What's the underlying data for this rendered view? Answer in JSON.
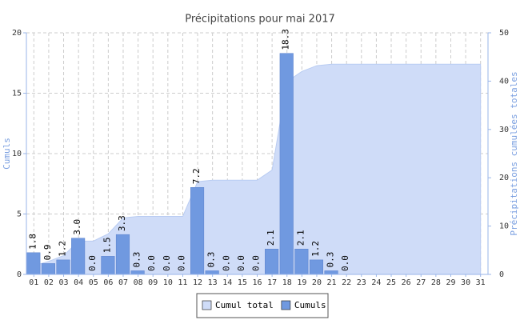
{
  "chart_data": {
    "type": "bar",
    "title": "Précipitations pour mai 2017",
    "categories": [
      "01",
      "02",
      "03",
      "04",
      "05",
      "06",
      "07",
      "08",
      "09",
      "10",
      "11",
      "12",
      "13",
      "14",
      "15",
      "16",
      "17",
      "18",
      "19",
      "20",
      "21",
      "22",
      "23",
      "24",
      "25",
      "26",
      "27",
      "28",
      "29",
      "30",
      "31"
    ],
    "ylabel": "Cumuls",
    "y2label": "Précipitations cumulées totales",
    "ylim": [
      0,
      20
    ],
    "yticks": [
      0,
      5,
      10,
      15,
      20
    ],
    "y2lim": [
      0,
      50
    ],
    "y2ticks": [
      0,
      10,
      20,
      30,
      40,
      50
    ],
    "grid": true,
    "legend": "bottom",
    "series": [
      {
        "name": "Cumul total",
        "type": "area",
        "axis": "y2",
        "color": "#cfdcf8",
        "values": [
          1.8,
          2.7,
          3.9,
          6.9,
          6.9,
          8.4,
          11.7,
          12.0,
          12.0,
          12.0,
          12.0,
          19.2,
          19.5,
          19.5,
          19.5,
          19.5,
          21.6,
          39.9,
          42.0,
          43.2,
          43.5,
          43.5,
          43.5,
          43.5,
          43.5,
          43.5,
          43.5,
          43.5,
          43.5,
          43.5,
          43.5
        ]
      },
      {
        "name": "Cumuls",
        "type": "bar",
        "color": "#7099e0",
        "values": [
          1.8,
          0.9,
          1.2,
          3.0,
          0.0,
          1.5,
          3.3,
          0.3,
          0.0,
          0.0,
          0.0,
          7.2,
          0.3,
          0.0,
          0.0,
          0.0,
          2.1,
          18.3,
          2.1,
          1.2,
          0.3,
          0.0,
          null,
          null,
          null,
          null,
          null,
          null,
          null,
          null,
          null
        ],
        "value_labels": [
          "1.8",
          "0.9",
          "1.2",
          "3.0",
          "0.0",
          "1.5",
          "3.3",
          "0.3",
          "0.0",
          "0.0",
          "0.0",
          "7.2",
          "0.3",
          "0.0",
          "0.0",
          "0.0",
          "2.1",
          "18.3",
          "2.1",
          "1.2",
          "0.3",
          "0.0",
          null,
          null,
          null,
          null,
          null,
          null,
          null,
          null,
          null
        ]
      }
    ]
  }
}
